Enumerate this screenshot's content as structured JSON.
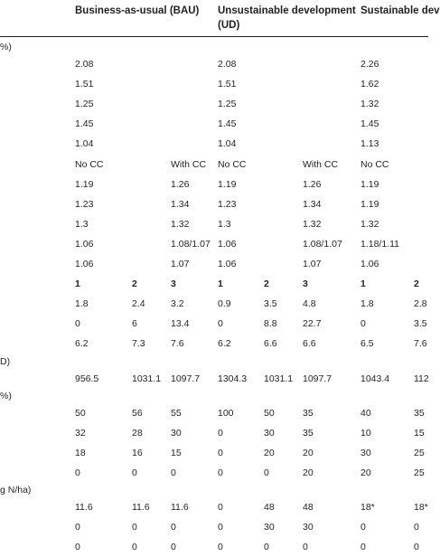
{
  "headers": {
    "bau": "Business-as-usual (BAU)",
    "ud_line1": "Unsustainable development",
    "ud_line2": "(UD)",
    "sd": "Sustainable dev"
  },
  "sections": [
    {
      "label": "%)",
      "rows": [
        [
          "2.08",
          "",
          "",
          "2.08",
          "",
          "",
          "2.26",
          ""
        ],
        [
          "1.51",
          "",
          "",
          "1.51",
          "",
          "",
          "1.62",
          ""
        ],
        [
          "1.25",
          "",
          "",
          "1.25",
          "",
          "",
          "1.32",
          ""
        ],
        [
          "1.45",
          "",
          "",
          "1.45",
          "",
          "",
          "1.45",
          ""
        ],
        [
          "1.04",
          "",
          "",
          "1.04",
          "",
          "",
          "1.13",
          ""
        ],
        [
          "No CC",
          "",
          "With CC",
          "No CC",
          "",
          "With CC",
          "No CC",
          ""
        ],
        [
          "1.19",
          "",
          "1.26",
          "1.19",
          "",
          "1.26",
          "1.19",
          ""
        ],
        [
          "1.23",
          "",
          "1.34",
          "1.23",
          "",
          "1.34",
          "1.19",
          ""
        ],
        [
          "1.3",
          "",
          "1.32",
          "1.3",
          "",
          "1.32",
          "1.32",
          ""
        ],
        [
          "1.06",
          "",
          "1.08/1.07",
          "1.06",
          "",
          "1.08/1.07",
          "1.18/1.11",
          ""
        ],
        [
          "1.06",
          "",
          "1.07",
          "1.06",
          "",
          "1.07",
          "1.06",
          ""
        ],
        [
          "1",
          "2",
          "3",
          "1",
          "2",
          "3",
          "1",
          "2"
        ],
        [
          "1.8",
          "2.4",
          "3.2",
          "0.9",
          "3.5",
          "4.8",
          "1.8",
          "2.8"
        ],
        [
          "0",
          "6",
          "13.4",
          "0",
          "8.8",
          "22.7",
          "0",
          "3.5"
        ],
        [
          "6.2",
          "7.3",
          "7.6",
          "6.2",
          "6.6",
          "6.6",
          "6.5",
          "7.6"
        ]
      ]
    },
    {
      "label": "D)",
      "rows": [
        [
          "956.5",
          "1031.1",
          "1097.7",
          "1304.3",
          "1031.1",
          "1097.7",
          "1043.4",
          "112"
        ]
      ]
    },
    {
      "label": "%)",
      "rows": [
        [
          "50",
          "56",
          "55",
          "100",
          "50",
          "35",
          "40",
          "35"
        ],
        [
          "32",
          "28",
          "30",
          "0",
          "30",
          "35",
          "10",
          "15"
        ],
        [
          "18",
          "16",
          "15",
          "0",
          "20",
          "20",
          "30",
          "25"
        ],
        [
          "0",
          "0",
          "0",
          "0",
          "0",
          "20",
          "20",
          "25"
        ]
      ]
    },
    {
      "label": "g N/ha)",
      "rows": [
        [
          "11.6",
          "11.6",
          "11.6",
          "0",
          "48",
          "48",
          "18*",
          "18*"
        ],
        [
          "0",
          "0",
          "0",
          "0",
          "30",
          "30",
          "0",
          "0"
        ],
        [
          "0",
          "0",
          "0",
          "0",
          "0",
          "0",
          "0",
          "0"
        ]
      ]
    }
  ]
}
